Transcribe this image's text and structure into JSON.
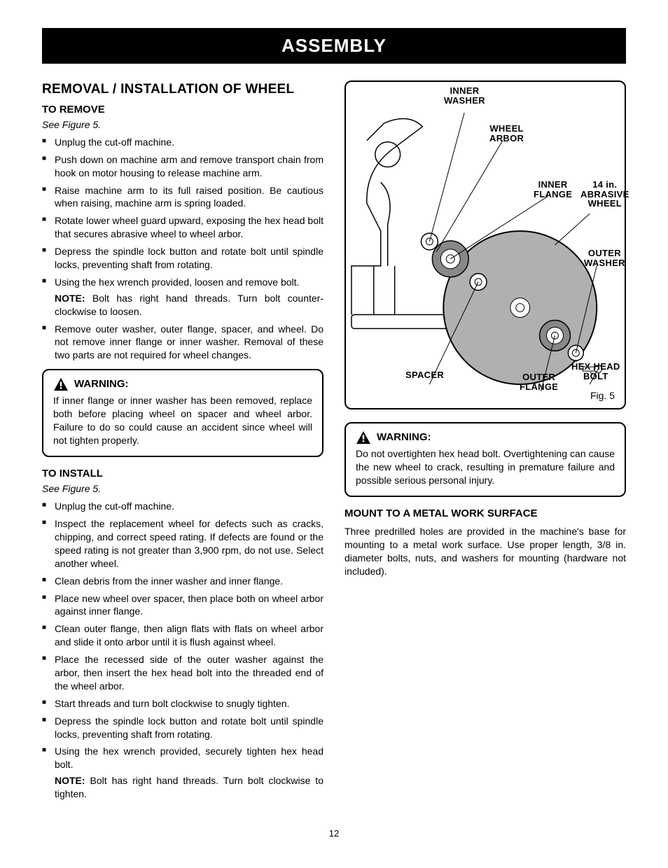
{
  "banner": "ASSEMBLY",
  "page_number": "12",
  "left": {
    "title": "REMOVAL / INSTALLATION OF WHEEL",
    "remove": {
      "heading": "TO REMOVE",
      "see": "See Figure 5.",
      "items": [
        "Unplug the cut-off machine.",
        "Push down on machine arm and remove transport chain from hook on motor housing to release machine arm.",
        "Raise machine arm to its full raised position. Be cautious when raising, machine arm is spring loaded.",
        "Rotate lower wheel guard upward, exposing the hex head bolt that secures abrasive wheel to wheel arbor.",
        "Depress the spindle lock button and rotate bolt until spindle locks, preventing shaft from rotating.",
        "Using the hex wrench provided, loosen and remove bolt.",
        "Remove outer washer, outer flange, spacer, and wheel. Do not remove inner flange or inner washer. Removal of these two parts are not required for wheel changes."
      ],
      "note_label": "NOTE:",
      "note": " Bolt has right hand threads. Turn bolt counter­clockwise to loosen."
    },
    "warning1": {
      "title": "WARNING:",
      "body": "If inner flange or inner washer has been removed, replace both before placing wheel on spacer and wheel arbor. Failure to do so could cause an accident since wheel will not tighten properly."
    },
    "install": {
      "heading": "TO INSTALL",
      "see": "See Figure 5.",
      "items": [
        "Unplug the cut-off machine.",
        "Inspect the replacement wheel for defects such as cracks, chipping, and correct speed rating. If defects are found or the speed rating is not greater than 3,900 rpm, do not use. Select another wheel.",
        "Clean debris from the inner washer and inner flange.",
        "Place new wheel over spacer, then place both on wheel arbor against inner flange.",
        "Clean outer flange, then align flats with flats on wheel arbor and slide it onto arbor until it is flush against wheel.",
        "Place the recessed side of the outer washer against the arbor, then insert the hex head bolt into the threaded end of the wheel arbor.",
        "Start threads and turn bolt clockwise to snugly tighten.",
        "Depress the spindle lock button and rotate bolt until spindle locks, preventing shaft from rotating.",
        "Using the hex wrench provided, securely tighten hex head bolt."
      ],
      "note_label": "NOTE:",
      "note": " Bolt has right hand threads. Turn bolt clockwise to tighten."
    }
  },
  "right": {
    "figure": {
      "caption": "Fig. 5",
      "labels": {
        "inner_washer": "INNER\nWASHER",
        "wheel_arbor": "WHEEL\nARBOR",
        "inner_flange": "INNER\nFLANGE",
        "abrasive_wheel": "14 in.\nABRASIVE\nWHEEL",
        "outer_washer": "OUTER\nWASHER",
        "hex_head_bolt": "HEX HEAD\nBOLT",
        "outer_flange": "OUTER\nFLANGE",
        "spacer": "SPACER"
      },
      "colors": {
        "wheel_fill": "#b0b0b0",
        "flange_fill": "#888888",
        "line": "#000000",
        "bg": "#ffffff"
      }
    },
    "warning2": {
      "title": "WARNING:",
      "body": "Do not overtighten hex head bolt. Overtightening can cause the new wheel to crack, resulting in premature failure and possible serious personal injury."
    },
    "mount": {
      "heading": "MOUNT TO A METAL WORK SURFACE",
      "body": "Three predrilled holes are provided in the machine's base for mounting to a metal work surface. Use proper length, 3/8 in. diameter bolts, nuts, and washers for mounting (hardware not included)."
    }
  }
}
